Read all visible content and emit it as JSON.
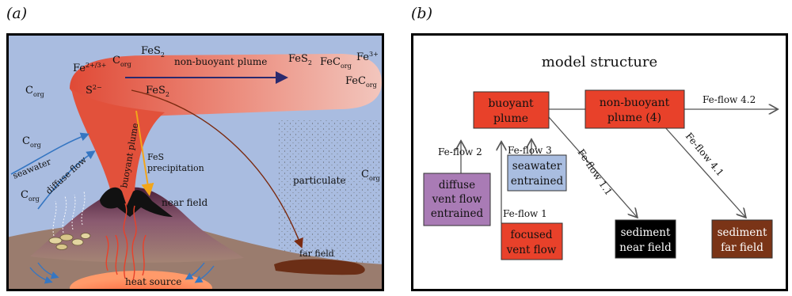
{
  "panel_a": {
    "letter": "(a)",
    "labels": {
      "fe_species": "Fe",
      "fe_species_sup": "2+/3+",
      "c_org_top": "C",
      "c_org_top_sub": "org",
      "fes2_top": "FeS",
      "fes2_top_sub": "2",
      "s2": "S",
      "s2_sup": "2−",
      "fes2_lower": "FeS",
      "fes2_lower_sub": "2",
      "non_buoyant_plume": "non-buoyant plume",
      "fes2_right": "FeS",
      "fes2_right_sub": "2",
      "fecorg_right": "FeC",
      "fecorg_right_sub": "org",
      "fe3_right": "Fe",
      "fe3_right_sup": "3+",
      "fecorg_right2": "FeC",
      "fecorg_right2_sub": "org",
      "c_org_left1": "C",
      "c_org_left1_sub": "org",
      "c_org_left2": "C",
      "c_org_left2_sub": "org",
      "c_org_left3": "C",
      "c_org_left3_sub": "org",
      "c_org_right": "C",
      "c_org_right_sub": "org",
      "seawater": "seawater",
      "diffuse_flow": "diffuse flow",
      "buoyant_plume": "buoyant plume",
      "fes_precipitation_1": "FeS",
      "fes_precipitation_2": "precipitation",
      "near_field": "near field",
      "particulate": "particulate",
      "far_field": "far field",
      "heat_source": "heat source"
    }
  },
  "panel_b": {
    "letter": "(b)",
    "title": "model structure",
    "boxes": {
      "buoyant_1": "buoyant",
      "buoyant_2": "plume",
      "nonbuoyant_1": "non-buoyant",
      "nonbuoyant_2": "plume (4)",
      "seawater_1": "seawater",
      "seawater_2": "entrained",
      "diffuse_1": "diffuse",
      "diffuse_2": "vent flow",
      "diffuse_3": "entrained",
      "focused_1": "focused",
      "focused_2": "vent flow",
      "sed_near_1": "sediment",
      "sed_near_2": "near field",
      "sed_far_1": "sediment",
      "sed_far_2": "far field"
    },
    "flows": {
      "f42": "Fe-flow 4.2",
      "f2": "Fe-flow 2",
      "f3": "Fe-flow 3",
      "f11": "Fe-flow 1.1",
      "f41": "Fe-flow 4.1",
      "f1": "Fe-flow 1"
    },
    "colors": {
      "red": "#e8412a",
      "blue": "#a9bde0",
      "purple": "#a97bb5",
      "black": "#000000",
      "brown": "#7a3417"
    }
  }
}
